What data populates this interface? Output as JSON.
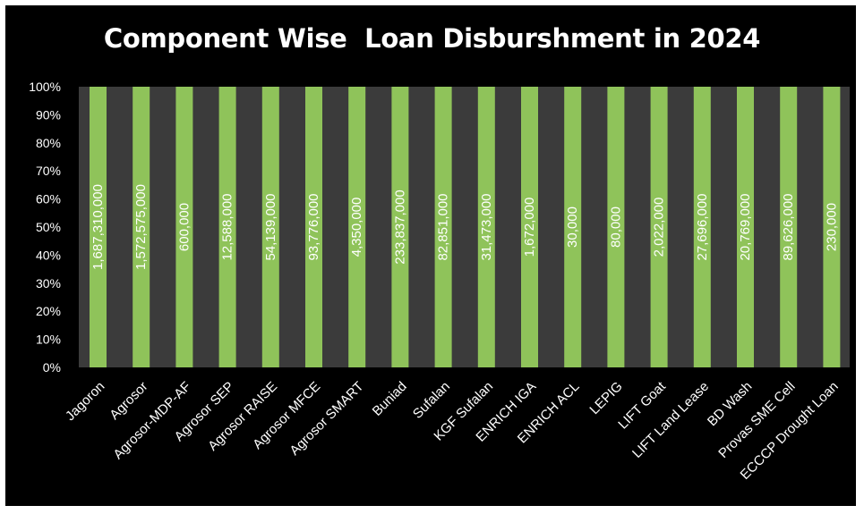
{
  "chart_data": {
    "type": "bar",
    "stacked_percent": true,
    "title": "Component Wise  Loan Disburshment in 2024",
    "xlabel": "",
    "ylabel": "",
    "ylim": [
      0,
      100
    ],
    "yticks": [
      "0%",
      "10%",
      "20%",
      "30%",
      "40%",
      "50%",
      "60%",
      "70%",
      "80%",
      "90%",
      "100%"
    ],
    "grid": false,
    "categories": [
      "Jagoron",
      "Agrosor",
      "Agrosor-MDP-AF",
      "Agrosor SEP",
      "Agrosor RAISE",
      "Agrosor MFCE",
      "Agrosor SMART",
      "Buniad",
      "Sufalan",
      "KGF Sufalan",
      "ENRICH IGA",
      "ENRICH ACL",
      "LEPIG",
      "LIFT Goat",
      "LIFT Land Lease",
      "BD Wash",
      "Provas SME Cell",
      "ECCCP Drought Loan"
    ],
    "values": [
      100,
      100,
      100,
      100,
      100,
      100,
      100,
      100,
      100,
      100,
      100,
      100,
      100,
      100,
      100,
      100,
      100,
      100
    ],
    "data_labels": [
      "1,687,310,000",
      "1,572,575,000",
      "600,000",
      "12,588,000",
      "54,139,000",
      "93,776,000",
      "4,350,000",
      "233,837,000",
      "82,851,000",
      "31,473,000",
      "1,672,000",
      "30,000",
      "80,000",
      "2,022,000",
      "27,696,000",
      "20,769,000",
      "89,626,000",
      "230,000"
    ],
    "colors": {
      "background": "#000000",
      "plot_area": "#3b3b3b",
      "bar": "#8fc35a",
      "text": "#ffffff"
    }
  }
}
